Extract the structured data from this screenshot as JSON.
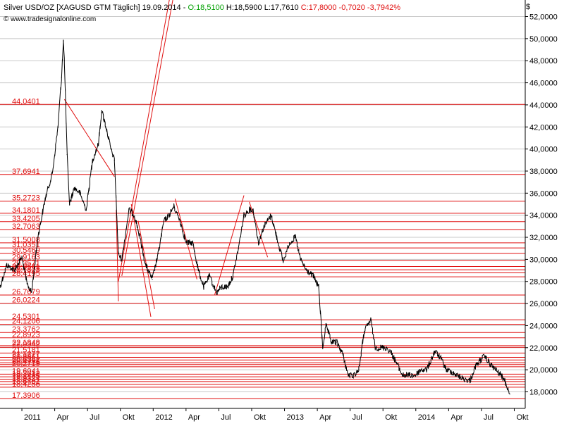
{
  "header": {
    "instrument": "Silver USD/OZ [XAGUSD GTM  Täglich] 19.09.2014 -",
    "open_label": "O:18,5100",
    "high_label": "H:18,5900",
    "low_label": "L:17,7610",
    "close_label": "C:17,8000 -0,7020 -3,7942%",
    "url": "www.tradesignalonline.com",
    "currency": "$"
  },
  "colors": {
    "price": "#000000",
    "level": "#e01010",
    "grid": "#c8c8c8",
    "open": "#00a000",
    "background": "#ffffff"
  },
  "chart_data": {
    "type": "line",
    "x_ticks": [
      "2011",
      "Apr",
      "Jul",
      "Okt",
      "2012",
      "Apr",
      "Jul",
      "Okt",
      "2013",
      "Apr",
      "Jul",
      "Okt",
      "2014",
      "Apr",
      "Jul",
      "Okt"
    ],
    "x_start": "2010-11",
    "x_end": "2014-11",
    "ylim": [
      16.5,
      53.5
    ],
    "y_ticks": [
      "18,0000",
      "20,0000",
      "22,0000",
      "24,0000",
      "26,0000",
      "28,0000",
      "30,0000",
      "32,0000",
      "34,0000",
      "36,0000",
      "38,0000",
      "40,0000",
      "42,0000",
      "44,0000",
      "46,0000",
      "48,0000",
      "50,0000",
      "52,0000"
    ],
    "y_tick_values": [
      18,
      20,
      22,
      24,
      26,
      28,
      30,
      32,
      34,
      36,
      38,
      40,
      42,
      44,
      46,
      48,
      50,
      52
    ],
    "grid": true,
    "series": [
      {
        "x": [
          "2010-11-01",
          "2010-11-20",
          "2010-12-10",
          "2011-01-01",
          "2011-01-15",
          "2011-01-28",
          "2011-02-15",
          "2011-03-05",
          "2011-03-25",
          "2011-04-10",
          "2011-04-20",
          "2011-04-25",
          "2011-04-28",
          "2011-05-05",
          "2011-05-12",
          "2011-05-25",
          "2011-06-10",
          "2011-06-28",
          "2011-07-15",
          "2011-08-01",
          "2011-08-10",
          "2011-08-22",
          "2011-09-05",
          "2011-09-15",
          "2011-09-26",
          "2011-10-05",
          "2011-10-25",
          "2011-11-10",
          "2011-11-25",
          "2011-12-10",
          "2011-12-29",
          "2012-01-15",
          "2012-01-31",
          "2012-02-15",
          "2012-02-28",
          "2012-03-15",
          "2012-04-01",
          "2012-04-20",
          "2012-05-05",
          "2012-05-20",
          "2012-06-05",
          "2012-06-25",
          "2012-07-10",
          "2012-07-25",
          "2012-08-10",
          "2012-08-25",
          "2012-09-10",
          "2012-09-25",
          "2012-10-05",
          "2012-10-20",
          "2012-11-05",
          "2012-11-25",
          "2012-12-10",
          "2012-12-28",
          "2013-01-15",
          "2013-02-01",
          "2013-02-15",
          "2013-03-01",
          "2013-03-20",
          "2013-04-05",
          "2013-04-12",
          "2013-04-16",
          "2013-04-25",
          "2013-05-10",
          "2013-05-25",
          "2013-06-10",
          "2013-06-26",
          "2013-07-10",
          "2013-07-25",
          "2013-08-10",
          "2013-08-28",
          "2013-09-10",
          "2013-09-25",
          "2013-10-10",
          "2013-10-25",
          "2013-11-10",
          "2013-11-25",
          "2013-12-10",
          "2013-12-30",
          "2014-01-15",
          "2014-02-01",
          "2014-02-24",
          "2014-03-10",
          "2014-03-25",
          "2014-04-10",
          "2014-04-25",
          "2014-05-10",
          "2014-05-30",
          "2014-06-15",
          "2014-07-01",
          "2014-07-10",
          "2014-07-25",
          "2014-08-10",
          "2014-08-25",
          "2014-09-05",
          "2014-09-19"
        ],
        "y": [
          27.5,
          29.5,
          29.0,
          30.2,
          27.8,
          27.0,
          32.0,
          35.5,
          37.8,
          42.0,
          46.5,
          49.8,
          48.0,
          39.5,
          35.0,
          36.5,
          36.0,
          34.5,
          39.0,
          40.5,
          43.5,
          42.0,
          40.0,
          39.0,
          30.5,
          30.0,
          34.5,
          34.0,
          32.0,
          29.5,
          28.2,
          30.5,
          33.5,
          34.0,
          34.8,
          33.5,
          31.5,
          31.5,
          29.0,
          27.5,
          28.5,
          27.0,
          27.5,
          27.5,
          28.5,
          31.0,
          34.0,
          34.5,
          34.5,
          31.5,
          33.0,
          34.0,
          32.0,
          29.8,
          31.5,
          32.0,
          30.0,
          29.0,
          28.5,
          27.5,
          24.0,
          22.0,
          24.0,
          22.5,
          22.5,
          21.5,
          19.5,
          19.5,
          20.0,
          23.5,
          24.5,
          22.0,
          22.0,
          22.0,
          21.5,
          20.5,
          19.5,
          19.5,
          19.5,
          20.0,
          20.0,
          21.7,
          21.0,
          20.0,
          19.8,
          19.5,
          19.2,
          19.0,
          20.3,
          21.0,
          21.2,
          20.5,
          20.0,
          19.5,
          19.0,
          17.8
        ]
      }
    ]
  },
  "trendlines": [
    {
      "from": [
        "2011-04-28",
        44.5
      ],
      "to": [
        "2011-09-15",
        37.5
      ]
    },
    {
      "from": [
        "2011-09-20",
        34.5
      ],
      "to": [
        "2011-09-26",
        26.2
      ]
    },
    {
      "from": [
        "2011-09-26",
        28.0
      ],
      "to": [
        "2012-03-10",
        58.0
      ]
    },
    {
      "from": [
        "2011-10-05",
        28.5
      ],
      "to": [
        "2012-02-28",
        54.0
      ]
    },
    {
      "from": [
        "2011-11-01",
        35.0
      ],
      "to": [
        "2011-12-25",
        24.8
      ]
    },
    {
      "from": [
        "2011-11-20",
        33.5
      ],
      "to": [
        "2012-01-05",
        25.5
      ]
    },
    {
      "from": [
        "2012-03-01",
        35.5
      ],
      "to": [
        "2012-05-01",
        28.2
      ]
    },
    {
      "from": [
        "2012-06-20",
        26.8
      ],
      "to": [
        "2012-09-10",
        35.8
      ]
    },
    {
      "from": [
        "2012-09-25",
        35.2
      ],
      "to": [
        "2012-11-15",
        30.2
      ]
    }
  ],
  "levels": [
    {
      "label": "44,0401",
      "value": 44.0401
    },
    {
      "label": "37,6941",
      "value": 37.6941
    },
    {
      "label": "35,2723",
      "value": 35.2723
    },
    {
      "label": "34,1801",
      "value": 34.1801
    },
    {
      "label": "33,4205",
      "value": 33.4205
    },
    {
      "label": "32,7063",
      "value": 32.7063
    },
    {
      "label": "31,5008",
      "value": 31.5008
    },
    {
      "label": "31,0351",
      "value": 31.0351
    },
    {
      "label": "30,5469",
      "value": 30.5469
    },
    {
      "label": "29,9163",
      "value": 29.9163
    },
    {
      "label": "29,3571",
      "value": 29.3571
    },
    {
      "label": "29,0561",
      "value": 29.0561
    },
    {
      "label": "28,7823",
      "value": 28.7823
    },
    {
      "label": "28,4195",
      "value": 28.4195
    },
    {
      "label": "26,7679",
      "value": 26.7679
    },
    {
      "label": "26,0224",
      "value": 26.0224
    },
    {
      "label": "24,5301",
      "value": 24.5301
    },
    {
      "label": "24,1206",
      "value": 24.1206
    },
    {
      "label": "23,3762",
      "value": 23.3762
    },
    {
      "label": "22,8923",
      "value": 22.8923
    },
    {
      "label": "22,1848",
      "value": 22.1848
    },
    {
      "label": "22,0342",
      "value": 22.0342
    },
    {
      "label": "21,5181",
      "value": 21.5181
    },
    {
      "label": "21,1277",
      "value": 21.1277
    },
    {
      "label": "20,8861",
      "value": 20.8861
    },
    {
      "label": "20,6382",
      "value": 20.6382
    },
    {
      "label": "20,4751",
      "value": 20.4751
    },
    {
      "label": "20,2719",
      "value": 20.2719
    },
    {
      "label": "19,6041",
      "value": 19.6041
    },
    {
      "label": "19,3612",
      "value": 19.3612
    },
    {
      "label": "19,1485",
      "value": 19.1485
    },
    {
      "label": "18,9324",
      "value": 18.9324
    },
    {
      "label": "18,6781",
      "value": 18.6781
    },
    {
      "label": "18,4256",
      "value": 18.4256
    },
    {
      "label": "17,3906",
      "value": 17.3906
    }
  ]
}
